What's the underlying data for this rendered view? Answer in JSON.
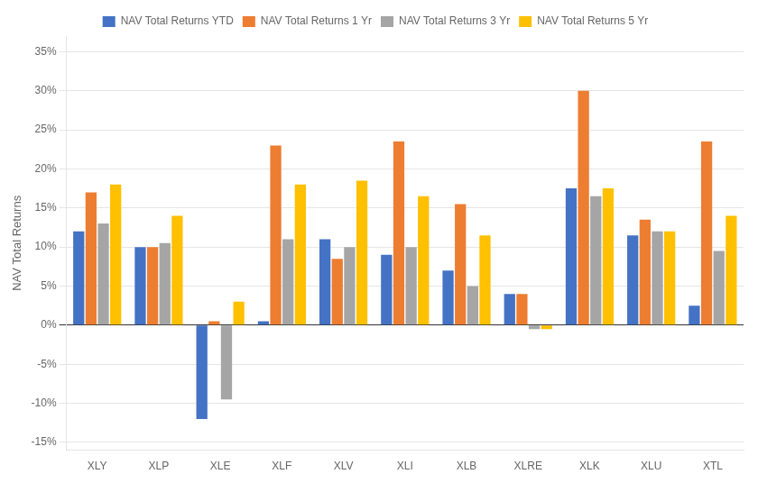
{
  "chart_data": {
    "type": "bar",
    "categories": [
      "XLY",
      "XLP",
      "XLE",
      "XLF",
      "XLV",
      "XLI",
      "XLB",
      "XLRE",
      "XLK",
      "XLU",
      "XTL"
    ],
    "series": [
      {
        "name": "NAV Total Returns YTD",
        "color": "#4472C4",
        "values": [
          12,
          10,
          -12,
          0.5,
          11,
          9,
          7,
          4,
          17.5,
          11.5,
          2.5
        ]
      },
      {
        "name": "NAV Total Returns 1 Yr",
        "color": "#ED7D31",
        "values": [
          17,
          10,
          0.5,
          23,
          8.5,
          23.5,
          15.5,
          4,
          30,
          13.5,
          23.5
        ]
      },
      {
        "name": "NAV Total Returns 3 Yr",
        "color": "#A5A5A5",
        "values": [
          13,
          10.5,
          -9.5,
          11,
          10,
          10,
          5,
          -0.5,
          16.5,
          12,
          9.5
        ]
      },
      {
        "name": "NAV Total Returns 5 Yr",
        "color": "#FFC000",
        "values": [
          18,
          14,
          3,
          18,
          18.5,
          16.5,
          11.5,
          -0.5,
          17.5,
          12,
          14
        ]
      }
    ],
    "ylabel": "NAV Total Returns",
    "ylim": [
      -16,
      37
    ],
    "yticks": [
      {
        "value": -15,
        "label": "-15%"
      },
      {
        "value": -10,
        "label": "-10%"
      },
      {
        "value": -5,
        "label": "-5%"
      },
      {
        "value": 0,
        "label": "0%"
      },
      {
        "value": 5,
        "label": "5%"
      },
      {
        "value": 10,
        "label": "10%"
      },
      {
        "value": 15,
        "label": "15%"
      },
      {
        "value": 20,
        "label": "20%"
      },
      {
        "value": 25,
        "label": "25%"
      },
      {
        "value": 30,
        "label": "30%"
      },
      {
        "value": 35,
        "label": "35%"
      }
    ],
    "grid": true,
    "legend": "top"
  }
}
